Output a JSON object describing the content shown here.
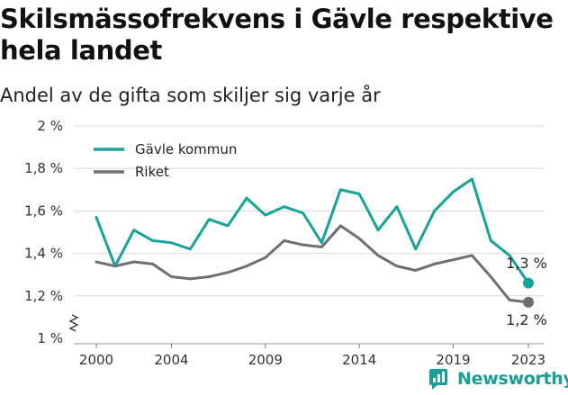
{
  "title": "Skilsmässofrekvens i Gävle respektive hela landet",
  "subtitle": "Andel av de gifta som skiljer sig varje år",
  "brand": {
    "name": "Newsworthy",
    "icon": "newsworthy-logo-icon"
  },
  "colors": {
    "gavle": "#16a398",
    "riket": "#6e6e73",
    "grid": "#d9d9d9",
    "brand": "#1a9e98"
  },
  "chart_data": {
    "type": "line",
    "title": "Skilsmässofrekvens i Gävle respektive hela landet",
    "subtitle": "Andel av de gifta som skiljer sig varje år",
    "xlabel": "",
    "ylabel": "",
    "xlim": [
      2000,
      2023
    ],
    "ylim": [
      1.0,
      2.0
    ],
    "grid": true,
    "legend_position": "top-left",
    "x_ticks": [
      2000,
      2004,
      2009,
      2014,
      2019,
      2023
    ],
    "y_ticks": [
      1.0,
      1.2,
      1.4,
      1.6,
      1.8,
      2.0
    ],
    "y_tick_labels": [
      "1 %",
      "1,2 %",
      "1,4 %",
      "1,6 %",
      "1,8 %",
      "2 %"
    ],
    "x": [
      2000,
      2001,
      2002,
      2003,
      2004,
      2005,
      2006,
      2007,
      2008,
      2009,
      2010,
      2011,
      2012,
      2013,
      2014,
      2015,
      2016,
      2017,
      2018,
      2019,
      2020,
      2021,
      2022,
      2023
    ],
    "series": [
      {
        "name": "Gävle kommun",
        "color": "#16a398",
        "values": [
          1.57,
          1.34,
          1.51,
          1.46,
          1.45,
          1.42,
          1.56,
          1.53,
          1.66,
          1.58,
          1.62,
          1.59,
          1.45,
          1.7,
          1.68,
          1.51,
          1.62,
          1.42,
          1.6,
          1.69,
          1.75,
          1.46,
          1.39,
          1.26
        ],
        "end_label": "1,3 %"
      },
      {
        "name": "Riket",
        "color": "#6e6e73",
        "values": [
          1.36,
          1.34,
          1.36,
          1.35,
          1.29,
          1.28,
          1.29,
          1.31,
          1.34,
          1.38,
          1.46,
          1.44,
          1.43,
          1.53,
          1.47,
          1.39,
          1.34,
          1.32,
          1.35,
          1.37,
          1.39,
          1.29,
          1.18,
          1.17
        ],
        "end_label": "1,2 %"
      }
    ]
  }
}
